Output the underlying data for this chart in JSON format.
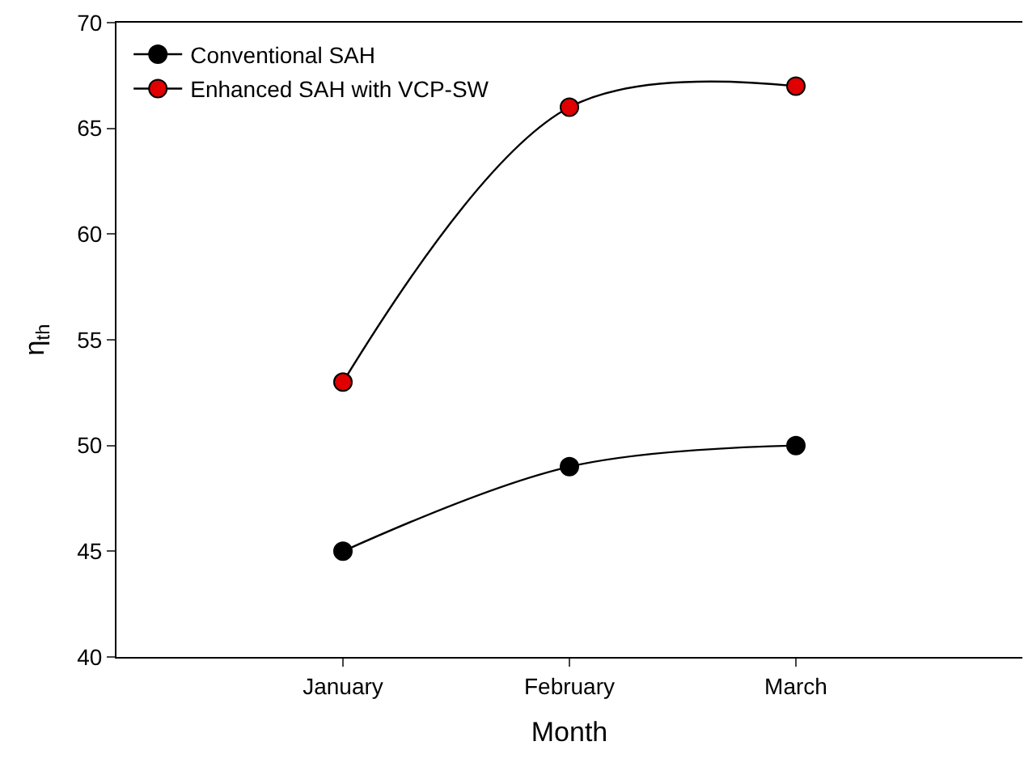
{
  "chart_data": {
    "type": "line",
    "xlabel": "Month",
    "ylabel": "η$_{th}$",
    "categories": [
      "January",
      "February",
      "March"
    ],
    "series": [
      {
        "name": "Conventional SAH",
        "color": "#000000",
        "values": [
          45,
          49,
          50
        ]
      },
      {
        "name": "Enhanced SAH with VCP-SW",
        "color": "#e00000",
        "values": [
          53,
          66,
          67
        ]
      }
    ],
    "ylim": [
      40,
      70
    ],
    "yticks": [
      40,
      45,
      50,
      55,
      60,
      65,
      70
    ],
    "legend": "top left",
    "marker": "circle",
    "line_style": "solid"
  }
}
